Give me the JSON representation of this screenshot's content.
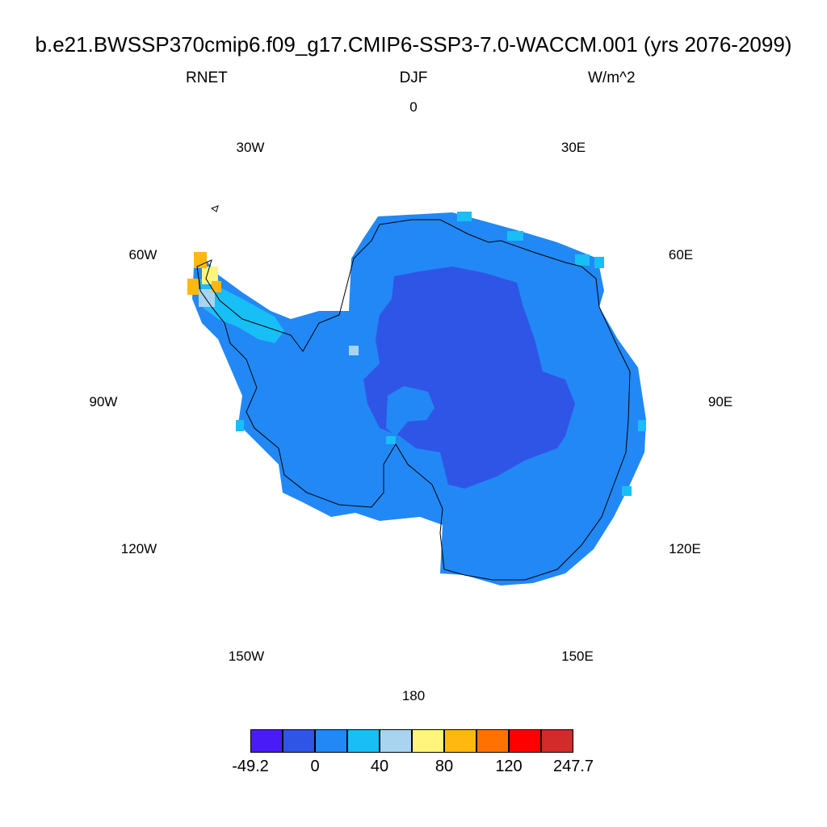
{
  "title": "b.e21.BWSSP370cmip6.f09_g17.CMIP6-SSP3-7.0-WACCM.001 (yrs 2076-2099)",
  "subtitle_left": "RNET",
  "subtitle_center": "DJF",
  "subtitle_right": "W/m^2",
  "longitude_labels": {
    "lon_0": "0",
    "lon_30E": "30E",
    "lon_60E": "60E",
    "lon_90E": "90E",
    "lon_120E": "120E",
    "lon_150E": "150E",
    "lon_180": "180",
    "lon_150W": "150W",
    "lon_120W": "120W",
    "lon_90W": "90W",
    "lon_60W": "60W",
    "lon_30W": "30W"
  },
  "colorbar": {
    "colors": [
      "#4a1cf5",
      "#2f55e6",
      "#2288f5",
      "#18bff7",
      "#a8d4f0",
      "#fff47c",
      "#ffb80f",
      "#ff7200",
      "#ff0000",
      "#d32a2a"
    ],
    "labels": [
      "-49.2",
      "0",
      "40",
      "80",
      "120",
      "247.7"
    ]
  },
  "map_data": {
    "projection": "south-polar-stereographic",
    "field": "RNET",
    "season": "DJF",
    "units": "W/m^2",
    "dominant_values": {
      "interior_plateau": "<0",
      "coastal_ice_sheet": "0 to 40",
      "antarctic_peninsula": "40 to 120"
    }
  }
}
